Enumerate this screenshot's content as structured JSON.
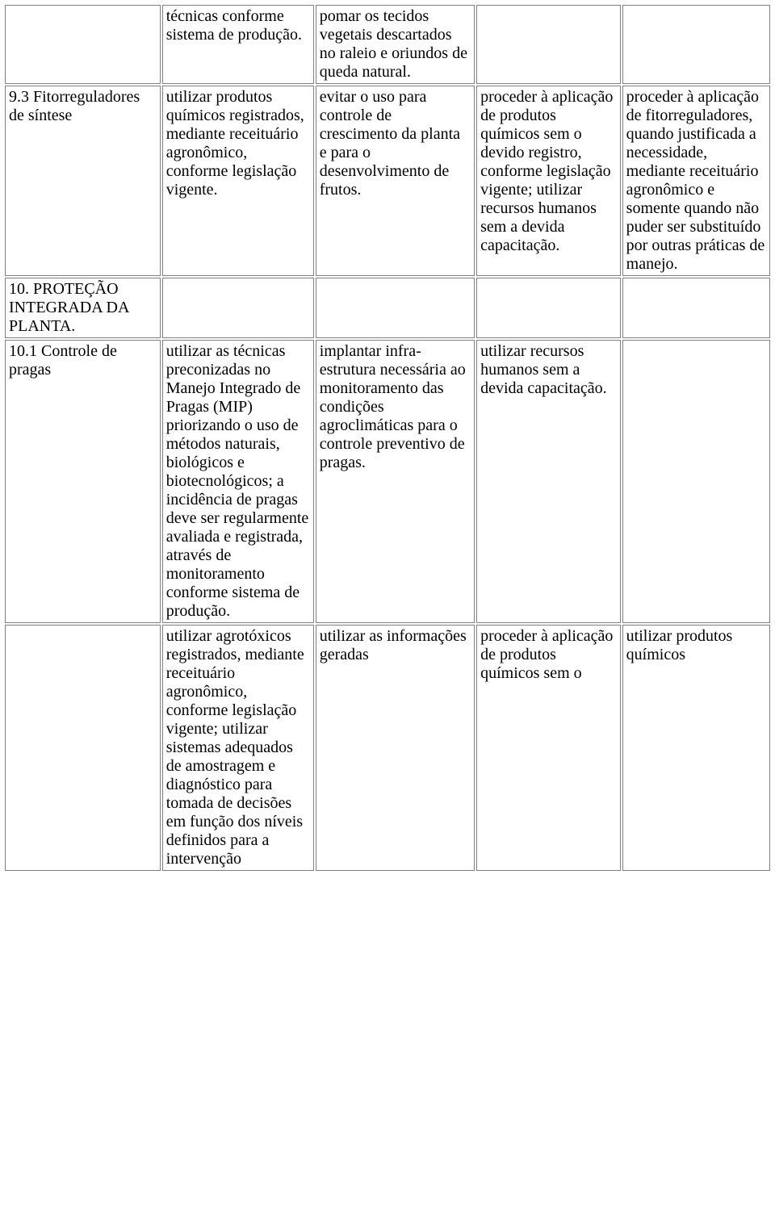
{
  "table": {
    "rows": [
      {
        "c1": "",
        "c2": "técnicas conforme sistema de produção.",
        "c3": "pomar os tecidos vegetais descartados no raleio e oriundos de queda natural.",
        "c4": "",
        "c5": ""
      },
      {
        "c1": "9.3 Fitorreguladores de síntese",
        "c2": "utilizar produtos químicos registrados, mediante receituário agronômico, conforme legislação vigente.",
        "c3": "evitar o uso para controle de crescimento da planta e para o desenvolvimento de frutos.",
        "c4": "proceder à aplicação de produtos químicos sem o devido registro, conforme legislação vigente; utilizar recursos humanos sem a devida capacitação.",
        "c5": "proceder à aplicação de fitorreguladores, quando justificada a necessidade, mediante receituário agronômico e somente quando não puder ser substituído por outras práticas de manejo."
      },
      {
        "c1": "10. PROTEÇÃO INTEGRADA DA PLANTA.",
        "c2": "",
        "c3": "",
        "c4": "",
        "c5": ""
      },
      {
        "c1": "10.1 Controle de pragas",
        "c2": "utilizar as técnicas preconizadas no Manejo Integrado de Pragas (MIP) priorizando o uso de métodos naturais, biológicos e biotecnológicos; a incidência de pragas deve ser regularmente avaliada e registrada, através de monitoramento conforme sistema de produção.",
        "c3": "implantar infra-estrutura necessária ao monitoramento das condições agroclimáticas para o controle preventivo de pragas.",
        "c4": "utilizar recursos humanos sem a devida capacitação.",
        "c5": ""
      },
      {
        "c1": "",
        "c2": "utilizar agrotóxicos registrados, mediante receituário agronômico, conforme legislação vigente; utilizar sistemas adequados de amostragem e diagnóstico para tomada de decisões em função dos níveis definidos para a intervenção",
        "c3": "utilizar as informações geradas",
        "c4": "proceder à aplicação de produtos químicos sem o",
        "c5": "utilizar produtos químicos"
      }
    ]
  },
  "style": {
    "font_family": "Times New Roman",
    "font_size_pt": 15,
    "text_color": "#000000",
    "background_color": "#ffffff",
    "border_color": "#808080",
    "column_widths_pct": [
      20.5,
      20,
      21,
      19,
      19.5
    ]
  }
}
